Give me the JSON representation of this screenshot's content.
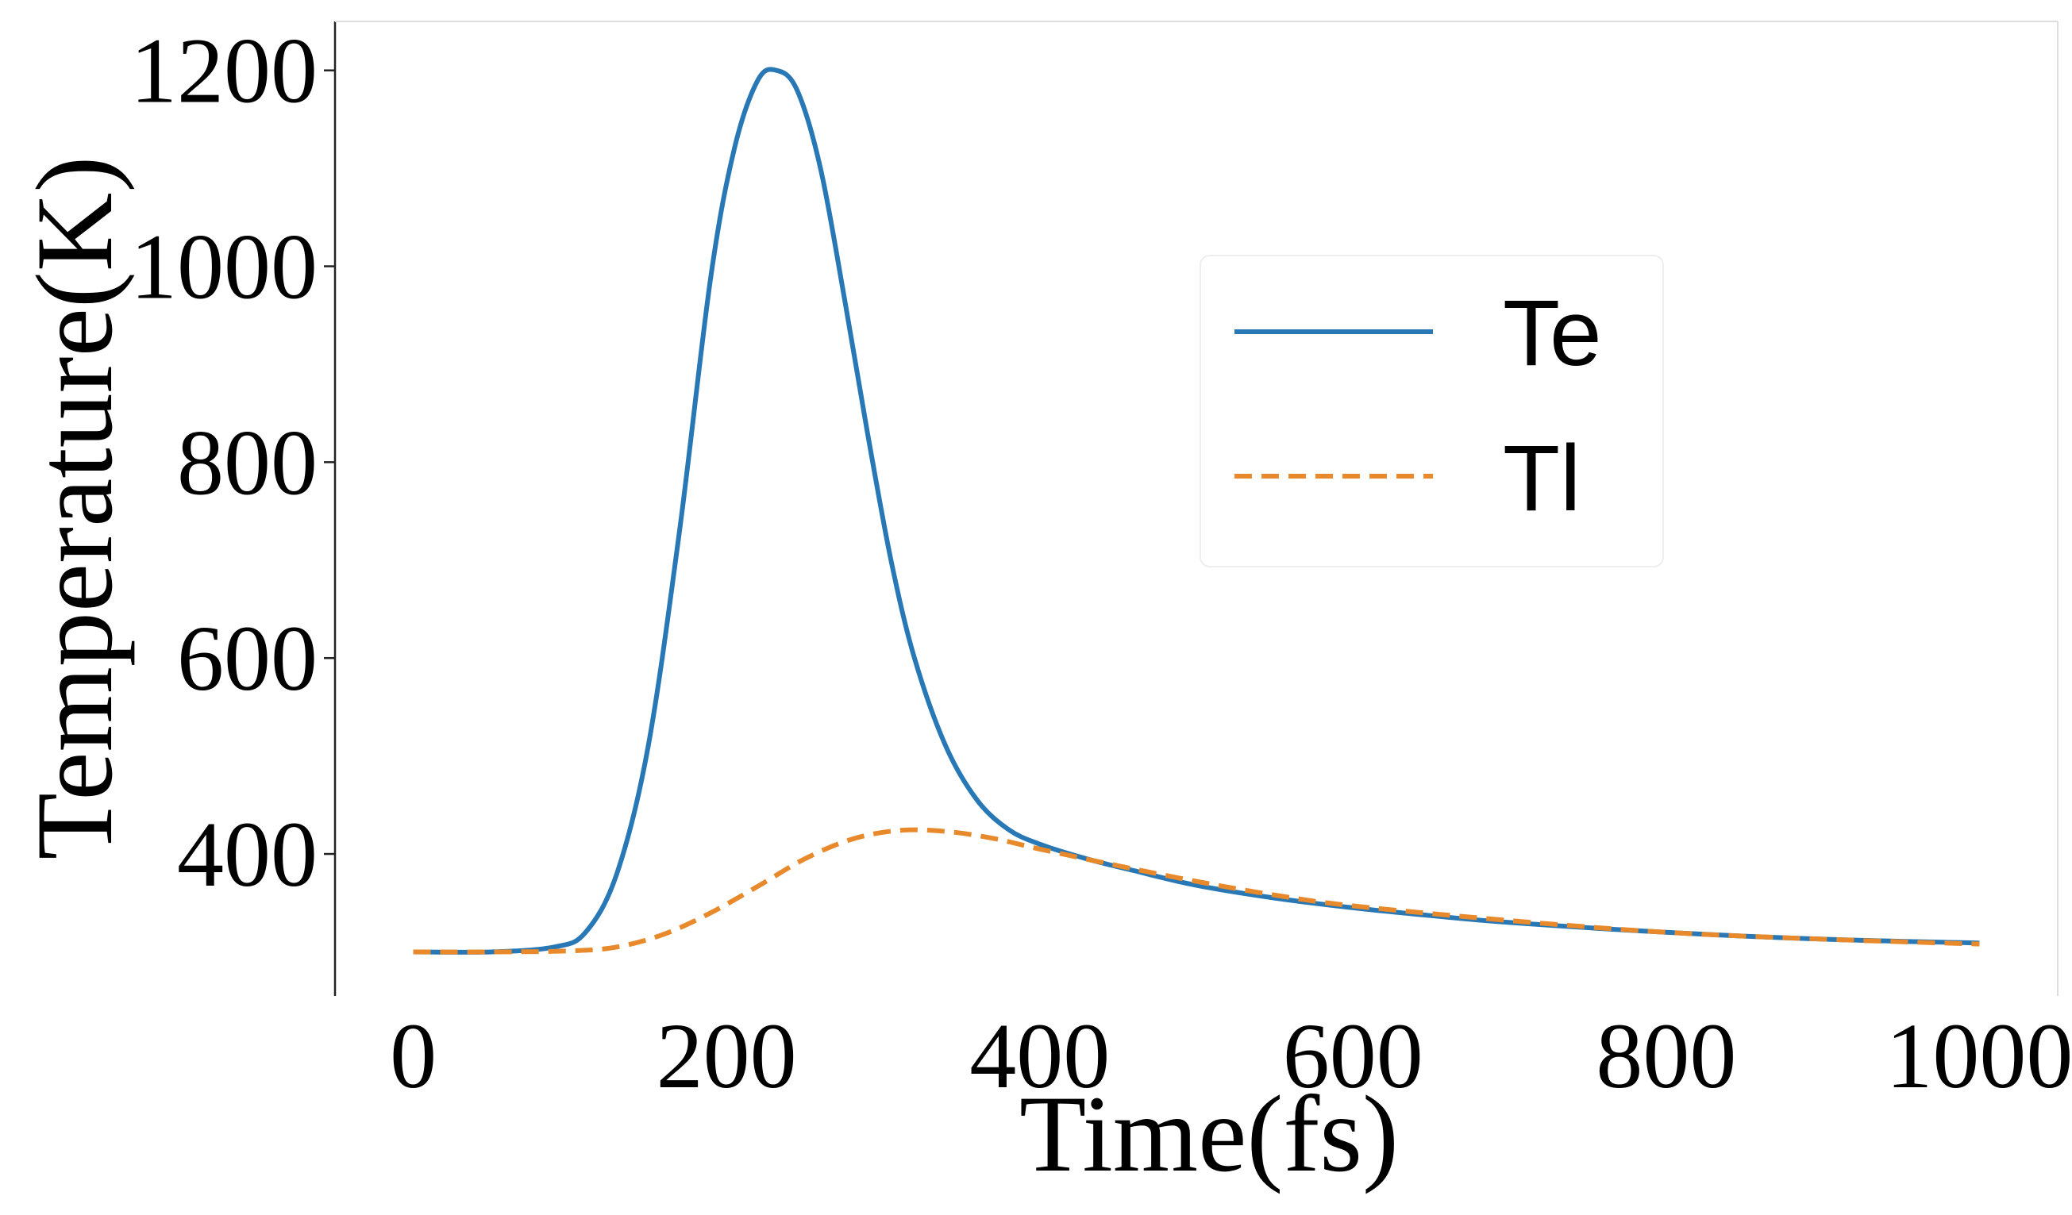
{
  "chart_data": {
    "type": "line",
    "title": "",
    "xlabel": "Time(fs)",
    "ylabel": "Temperature(K)",
    "xlim": [
      -50,
      1050
    ],
    "ylim": [
      255,
      1250
    ],
    "xticks": [
      0,
      200,
      400,
      600,
      800,
      1000
    ],
    "yticks": [
      400,
      600,
      800,
      1000,
      1200
    ],
    "xtick_labels": [
      "0",
      "200",
      "400",
      "600",
      "800",
      "1000"
    ],
    "ytick_labels": [
      "400",
      "600",
      "800",
      "1000",
      "1200"
    ],
    "grid": false,
    "legend_position": "upper-right",
    "series": [
      {
        "name": "Te",
        "style": "solid",
        "color": "#2878b5",
        "x": [
          0,
          50,
          90,
          110,
          130,
          150,
          170,
          190,
          205,
          220,
          232,
          245,
          260,
          275,
          290,
          305,
          320,
          340,
          360,
          380,
          400,
          430,
          460,
          500,
          550,
          600,
          650,
          700,
          800,
          900,
          1000
        ],
        "y": [
          300,
          300,
          305,
          320,
          380,
          510,
          730,
          990,
          1120,
          1190,
          1200,
          1180,
          1100,
          970,
          830,
          700,
          600,
          510,
          455,
          425,
          410,
          395,
          383,
          368,
          355,
          345,
          337,
          330,
          320,
          313,
          309
        ]
      },
      {
        "name": "Tl",
        "style": "dashed",
        "color": "#e8892b",
        "x": [
          0,
          50,
          100,
          130,
          160,
          190,
          220,
          250,
          280,
          310,
          340,
          370,
          400,
          450,
          500,
          550,
          600,
          700,
          800,
          900,
          1000
        ],
        "y": [
          300,
          300,
          301,
          305,
          318,
          340,
          367,
          395,
          415,
          424,
          423,
          416,
          405,
          388,
          372,
          358,
          347,
          332,
          320,
          313,
          308
        ]
      }
    ]
  }
}
